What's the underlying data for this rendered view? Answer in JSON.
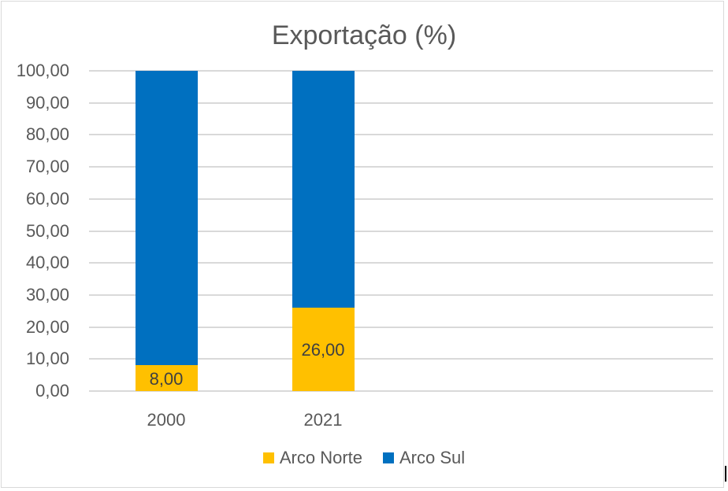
{
  "chart_data": {
    "type": "bar",
    "stacked": true,
    "title": "Exportação (%)",
    "xlabel": "",
    "ylabel": "",
    "categories": [
      "2000",
      "2021"
    ],
    "series": [
      {
        "name": "Arco Norte",
        "color": "#FFC000",
        "values": [
          8.0,
          26.0
        ],
        "labels": [
          "8,00",
          "26,00"
        ]
      },
      {
        "name": "Arco Sul",
        "color": "#0070C0",
        "values": [
          92.0,
          74.0
        ]
      }
    ],
    "ylim": [
      0,
      100
    ],
    "yticks": [
      "0,00",
      "10,00",
      "20,00",
      "30,00",
      "40,00",
      "50,00",
      "60,00",
      "70,00",
      "80,00",
      "90,00",
      "100,00"
    ],
    "grid": true,
    "legend_position": "bottom"
  }
}
